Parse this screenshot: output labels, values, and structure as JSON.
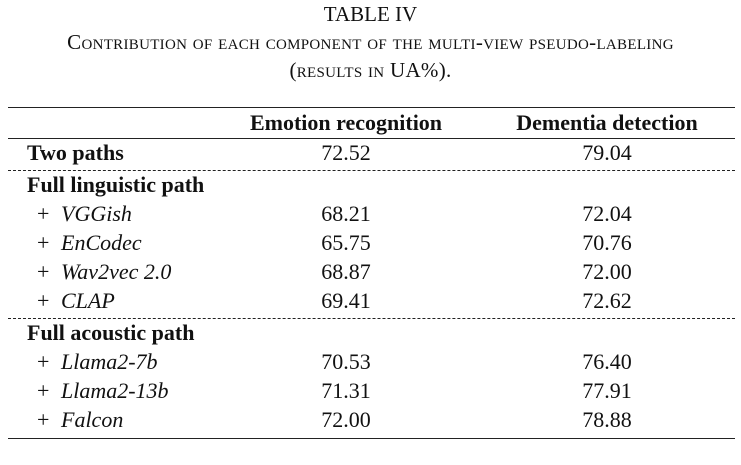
{
  "caption": {
    "label": "TABLE IV",
    "title": "Contribution of each component of the multi-view pseudo-labeling (results in UA%)."
  },
  "table": {
    "columns": [
      "Emotion recognition",
      "Dementia detection"
    ],
    "groups": [
      {
        "name": "Two paths",
        "values": [
          "72.52",
          "79.04"
        ]
      },
      {
        "name": "Full linguistic path",
        "rows": [
          {
            "marker": "+",
            "name": "VGGish",
            "values": [
              "68.21",
              "72.04"
            ]
          },
          {
            "marker": "+",
            "name": "EnCodec",
            "values": [
              "65.75",
              "70.76"
            ]
          },
          {
            "marker": "+",
            "name": "Wav2vec 2.0",
            "values": [
              "68.87",
              "72.00"
            ]
          },
          {
            "marker": "+",
            "name": "CLAP",
            "values": [
              "69.41",
              "72.62"
            ]
          }
        ]
      },
      {
        "name": "Full acoustic path",
        "rows": [
          {
            "marker": "+",
            "name": "Llama2-7b",
            "values": [
              "70.53",
              "76.40"
            ]
          },
          {
            "marker": "+",
            "name": "Llama2-13b",
            "values": [
              "71.31",
              "77.91"
            ]
          },
          {
            "marker": "+",
            "name": "Falcon",
            "values": [
              "72.00",
              "78.88"
            ]
          }
        ]
      }
    ]
  }
}
